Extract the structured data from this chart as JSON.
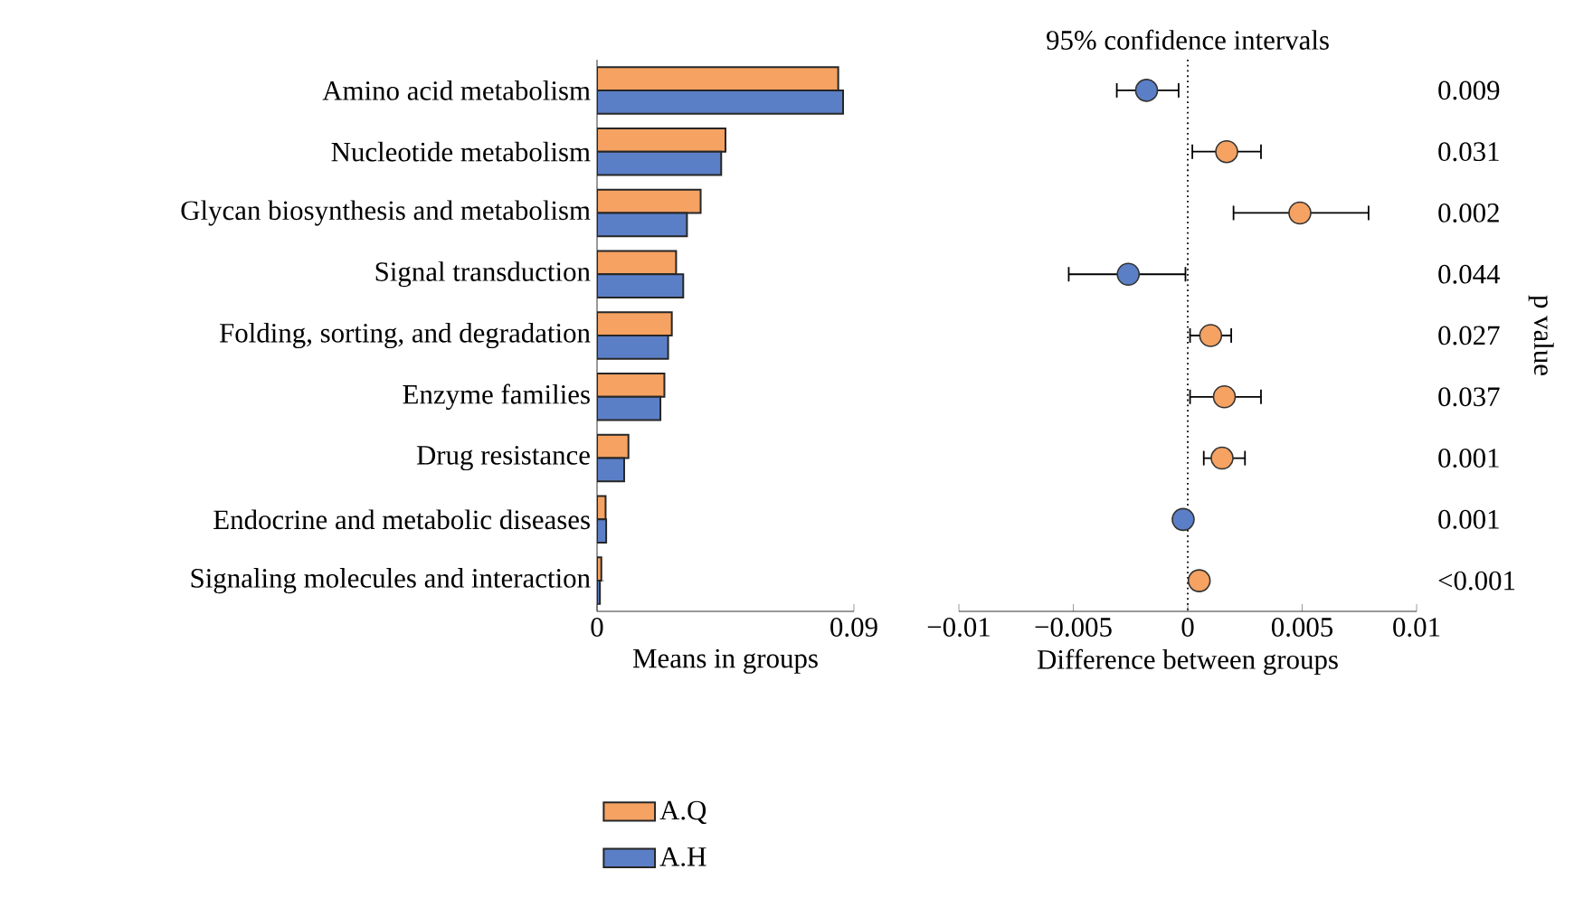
{
  "chart_data": [
    {
      "type": "bar",
      "orientation": "horizontal",
      "categories": [
        "Amino acid metabolism",
        "Nucleotide metabolism",
        "Glycan biosynthesis and metabolism",
        "Signal transduction",
        "Folding, sorting, and degradation",
        "Enzyme families",
        "Drug resistance",
        "Endocrine and metabolic diseases",
        "Signaling molecules and interaction"
      ],
      "series": [
        {
          "name": "A.Q",
          "color": "#f5a262",
          "values": [
            0.0845,
            0.045,
            0.0363,
            0.0277,
            0.0262,
            0.0236,
            0.011,
            0.003,
            0.0015
          ]
        },
        {
          "name": "A.H",
          "color": "#5b7fc7",
          "values": [
            0.0862,
            0.0435,
            0.0315,
            0.0302,
            0.0249,
            0.0222,
            0.0095,
            0.0032,
            0.001
          ]
        }
      ],
      "xlim": [
        0,
        0.09
      ],
      "xticks": [
        0,
        0.09
      ],
      "xlabel": "Means in groups",
      "legend": "bottom"
    },
    {
      "type": "scatter",
      "orientation": "horizontal",
      "title": "95% confidence intervals",
      "categories": [
        null,
        null,
        null,
        null,
        null,
        null,
        null,
        null,
        null
      ],
      "values": [
        -0.0018,
        0.0017,
        0.0049,
        -0.0026,
        0.001,
        0.0016,
        0.0015,
        -0.0002,
        0.0005
      ],
      "colors": [
        "#5b7fc7",
        "#f5a262",
        "#f5a262",
        "#5b7fc7",
        "#f5a262",
        "#f5a262",
        "#f5a262",
        "#5b7fc7",
        "#f5a262"
      ],
      "errors": [
        [
          -0.0031,
          -0.0004
        ],
        [
          0.0002,
          0.0032
        ],
        [
          0.002,
          0.0079
        ],
        [
          -0.0052,
          -0.0001
        ],
        [
          0.0001,
          0.0019
        ],
        [
          0.0001,
          0.0032
        ],
        [
          0.0007,
          0.0025
        ],
        [
          -0.0003,
          -0.0001
        ],
        [
          0.0002,
          0.0008
        ]
      ],
      "y2_categories": [
        "0.009",
        "0.031",
        "0.002",
        "0.044",
        "0.027",
        "0.037",
        "0.001",
        "0.001",
        "<0.001"
      ],
      "y2label": "p value",
      "xlim": [
        -0.01,
        0.01
      ],
      "xticks": [
        {
          "value": -0.01,
          "label": "−0.01"
        },
        {
          "value": -0.005,
          "label": "−0.005"
        },
        0,
        0.005,
        0.01
      ],
      "xlabel": "Difference between groups",
      "marker": "circle",
      "tick_labels": "x",
      "ref_lines": [
        {
          "axis": "x",
          "value": 0,
          "line_style": "dotted"
        }
      ]
    }
  ]
}
